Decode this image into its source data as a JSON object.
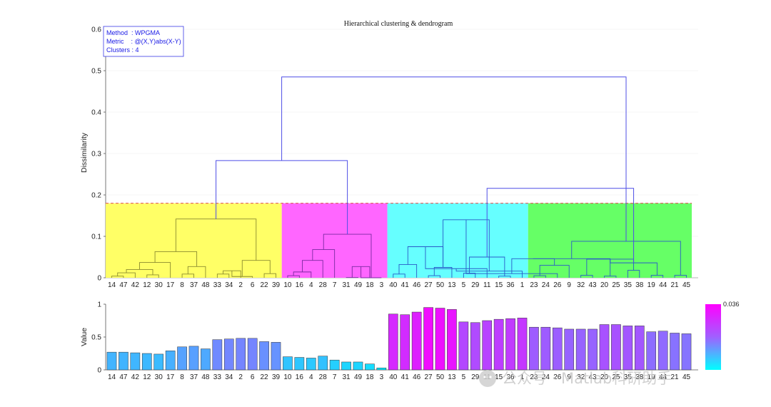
{
  "chart_data": [
    {
      "type": "dendrogram",
      "title": "Hierarchical clustering & dendrogram",
      "ylabel": "Dissimilarity",
      "ylim": [
        0,
        0.6
      ],
      "yticks": [
        0,
        0.1,
        0.2,
        0.3,
        0.4,
        0.5,
        0.6
      ],
      "cut_threshold": 0.18,
      "info": {
        "method": "Method  : WPGMA",
        "metric": "Metric    : @(X,Y)abs(X-Y)",
        "clusters": "Clusters : 4"
      },
      "leaf_order": [
        "14",
        "47",
        "42",
        "12",
        "30",
        "17",
        "8",
        "37",
        "48",
        "33",
        "34",
        "2",
        "6",
        "22",
        "39",
        "10",
        "16",
        "4",
        "28",
        "7",
        "31",
        "49",
        "18",
        "3",
        "40",
        "41",
        "46",
        "27",
        "50",
        "13",
        "5",
        "29",
        "11",
        "15",
        "36",
        "1",
        "23",
        "24",
        "26",
        "9",
        "32",
        "43",
        "20",
        "25",
        "35",
        "38",
        "19",
        "44",
        "21",
        "45"
      ],
      "cluster_regions": [
        {
          "name": "cluster-1",
          "first_leaf": 0,
          "last_leaf": 14,
          "color": "#ffff66"
        },
        {
          "name": "cluster-2",
          "first_leaf": 15,
          "last_leaf": 23,
          "color": "#ff66ff"
        },
        {
          "name": "cluster-3",
          "first_leaf": 24,
          "last_leaf": 35,
          "color": "#66ffff"
        },
        {
          "name": "cluster-4",
          "first_leaf": 36,
          "last_leaf": 49,
          "color": "#66ff66"
        }
      ],
      "merges": [
        [
          0,
          1,
          0.004
        ],
        [
          2,
          50,
          0.012
        ],
        [
          3,
          4,
          0.007
        ],
        [
          51,
          52,
          0.02
        ],
        [
          5,
          53,
          0.037
        ],
        [
          6,
          7,
          0.009
        ],
        [
          55,
          8,
          0.027
        ],
        [
          54,
          56,
          0.063
        ],
        [
          9,
          10,
          0.009
        ],
        [
          58,
          11,
          0.017
        ],
        [
          59,
          12,
          0.003
        ],
        [
          13,
          14,
          0.01
        ],
        [
          60,
          61,
          0.042
        ],
        [
          57,
          62,
          0.142
        ],
        [
          15,
          16,
          0.005
        ],
        [
          64,
          17,
          0.014
        ],
        [
          65,
          18,
          0.042
        ],
        [
          66,
          19,
          0.068
        ],
        [
          20,
          21,
          0.0005
        ],
        [
          68,
          22,
          0.027
        ],
        [
          69,
          23,
          0.0
        ],
        [
          67,
          70,
          0.105
        ],
        [
          24,
          25,
          0.009
        ],
        [
          72,
          26,
          0.032
        ],
        [
          27,
          28,
          0.005
        ],
        [
          74,
          29,
          0.025
        ],
        [
          73,
          75,
          0.075
        ],
        [
          30,
          31,
          0.011
        ],
        [
          76,
          32,
          0.022
        ],
        [
          33,
          34,
          0.004
        ],
        [
          35,
          78,
          0.016
        ],
        [
          77,
          79,
          0.05
        ],
        [
          75,
          80,
          0.14
        ],
        [
          36,
          37,
          0.005
        ],
        [
          82,
          38,
          0.01
        ],
        [
          83,
          39,
          0.03
        ],
        [
          40,
          41,
          0.006
        ],
        [
          84,
          85,
          0.046
        ],
        [
          42,
          43,
          0.004
        ],
        [
          44,
          45,
          0.018
        ],
        [
          87,
          88,
          0.046
        ],
        [
          86,
          89,
          0.045
        ],
        [
          46,
          47,
          0.006
        ],
        [
          48,
          49,
          0.006
        ],
        [
          91,
          92,
          0.036
        ],
        [
          90,
          93,
          0.088
        ],
        [
          63,
          71,
          0.283
        ],
        [
          81,
          94,
          0.216
        ],
        [
          95,
          96,
          0.485
        ]
      ]
    },
    {
      "type": "bar",
      "ylabel": "Value",
      "ylim": [
        0,
        1
      ],
      "yticks": [
        0,
        0.5,
        1
      ],
      "categories": [
        "14",
        "47",
        "42",
        "12",
        "30",
        "17",
        "8",
        "37",
        "48",
        "33",
        "34",
        "2",
        "6",
        "22",
        "39",
        "10",
        "16",
        "4",
        "28",
        "7",
        "31",
        "49",
        "18",
        "3",
        "40",
        "41",
        "46",
        "27",
        "50",
        "13",
        "5",
        "29",
        "11",
        "15",
        "36",
        "1",
        "23",
        "24",
        "26",
        "9",
        "32",
        "43",
        "20",
        "25",
        "35",
        "38",
        "19",
        "44",
        "21",
        "45"
      ],
      "values": [
        0.27,
        0.27,
        0.26,
        0.25,
        0.24,
        0.29,
        0.35,
        0.36,
        0.32,
        0.46,
        0.47,
        0.48,
        0.48,
        0.43,
        0.42,
        0.2,
        0.19,
        0.18,
        0.21,
        0.15,
        0.12,
        0.12,
        0.09,
        0.03,
        0.85,
        0.84,
        0.88,
        0.95,
        0.94,
        0.92,
        0.73,
        0.72,
        0.75,
        0.77,
        0.78,
        0.79,
        0.65,
        0.65,
        0.64,
        0.62,
        0.62,
        0.62,
        0.69,
        0.69,
        0.67,
        0.67,
        0.58,
        0.59,
        0.56,
        0.55
      ],
      "colorbar": {
        "max_label": "0.036",
        "top_color": "#ff00ff",
        "bottom_color": "#00ffff"
      }
    }
  ],
  "watermark": {
    "text": "公众号 · Matlab科研助手"
  }
}
